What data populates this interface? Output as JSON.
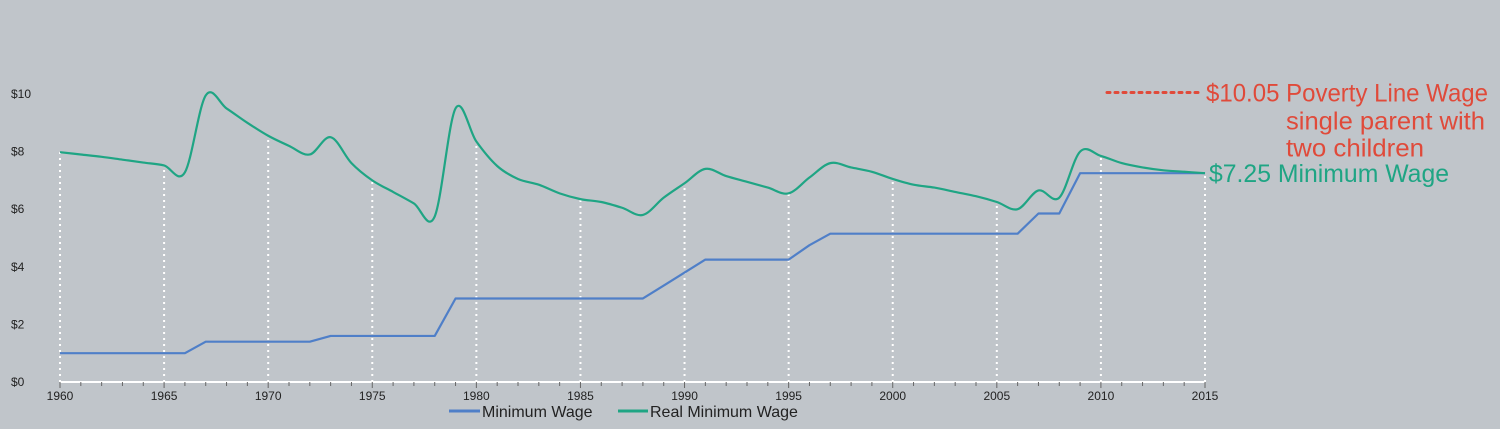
{
  "chart_data": {
    "type": "line",
    "x": [
      1960,
      1961,
      1962,
      1963,
      1964,
      1965,
      1966,
      1967,
      1968,
      1969,
      1970,
      1971,
      1972,
      1973,
      1974,
      1975,
      1976,
      1977,
      1978,
      1979,
      1980,
      1981,
      1982,
      1983,
      1984,
      1985,
      1986,
      1987,
      1988,
      1989,
      1990,
      1991,
      1992,
      1993,
      1994,
      1995,
      1996,
      1997,
      1998,
      1999,
      2000,
      2001,
      2002,
      2003,
      2004,
      2005,
      2006,
      2007,
      2008,
      2009,
      2010,
      2011,
      2012,
      2013,
      2014,
      2015
    ],
    "series": [
      {
        "name": "Minimum Wage",
        "color": "#4f7fc8",
        "values": [
          1.0,
          1.0,
          1.0,
          1.0,
          1.0,
          1.0,
          1.0,
          1.4,
          1.4,
          1.4,
          1.4,
          1.4,
          1.4,
          1.6,
          1.6,
          1.6,
          1.6,
          1.6,
          1.6,
          2.9,
          2.9,
          2.9,
          2.9,
          2.9,
          2.9,
          2.9,
          2.9,
          2.9,
          2.9,
          3.35,
          3.8,
          4.25,
          4.25,
          4.25,
          4.25,
          4.25,
          4.75,
          5.15,
          5.15,
          5.15,
          5.15,
          5.15,
          5.15,
          5.15,
          5.15,
          5.15,
          5.15,
          5.85,
          5.85,
          7.25,
          7.25,
          7.25,
          7.25,
          7.25,
          7.25,
          7.25
        ]
      },
      {
        "name": "Real Minimum Wage",
        "color": "#1fa584",
        "values": [
          7.98,
          7.9,
          7.82,
          7.72,
          7.62,
          7.52,
          7.28,
          9.95,
          9.5,
          9.0,
          8.55,
          8.2,
          7.9,
          8.5,
          7.6,
          7.0,
          6.6,
          6.2,
          5.75,
          9.5,
          8.35,
          7.5,
          7.05,
          6.85,
          6.55,
          6.35,
          6.25,
          6.05,
          5.8,
          6.4,
          6.9,
          7.4,
          7.15,
          6.95,
          6.75,
          6.55,
          7.1,
          7.6,
          7.45,
          7.3,
          7.05,
          6.85,
          6.75,
          6.6,
          6.45,
          6.25,
          6.0,
          6.65,
          6.4,
          8.0,
          7.85,
          7.6,
          7.45,
          7.35,
          7.3,
          7.25
        ]
      }
    ],
    "y_ticks": [
      "$0",
      "$2",
      "$4",
      "$6",
      "$8",
      "$10"
    ],
    "x_ticks": [
      "1960",
      "1965",
      "1970",
      "1975",
      "1980",
      "1985",
      "1990",
      "1995",
      "2000",
      "2005",
      "2010",
      "2015"
    ],
    "ylim": [
      0,
      10
    ],
    "xlim": [
      1960,
      2015
    ],
    "grid": "vertical dotted lines every 5 years",
    "legend": {
      "placement": "bottom-center",
      "items": [
        "Minimum Wage",
        "Real Minimum Wage"
      ]
    },
    "annotations": {
      "poverty": {
        "value": 10.05,
        "color": "#e04a3a",
        "line1": "$10.05 Poverty Line Wage",
        "line2": "single parent with",
        "line3": "two children"
      },
      "minimum": {
        "value": 7.25,
        "color": "#1fa584",
        "text": "$7.25 Minimum Wage"
      }
    }
  }
}
